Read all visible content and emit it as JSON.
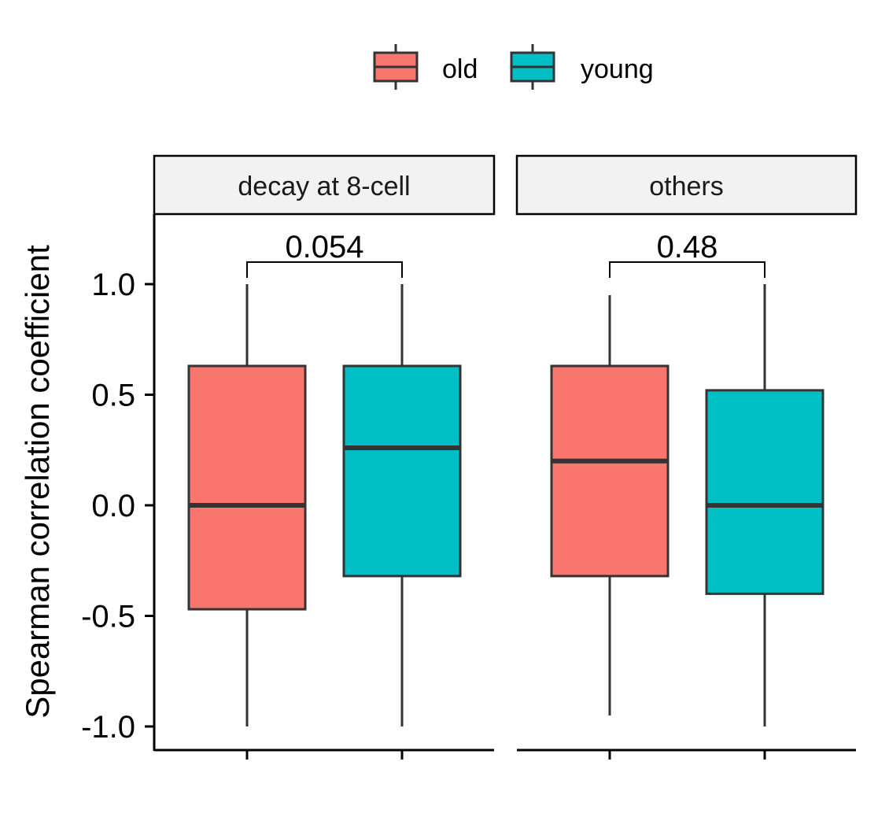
{
  "chart_data": {
    "type": "box",
    "ylabel": "Spearman correlation coefficient",
    "ylim": [
      -1.1,
      1.3
    ],
    "yticks": [
      "-1.0",
      "-0.5",
      "0.0",
      "0.5",
      "1.0"
    ],
    "ytick_values": [
      -1.0,
      -0.5,
      0.0,
      0.5,
      1.0
    ],
    "grid": false,
    "legend": {
      "position": "top",
      "entries": [
        {
          "label": "old",
          "color": "#F8766D"
        },
        {
          "label": "young",
          "color": "#00BFC4"
        }
      ]
    },
    "panels": [
      {
        "strip": "decay at 8-cell",
        "pvalue": "0.054",
        "boxes": [
          {
            "group": "old",
            "min": -1.0,
            "q1": -0.47,
            "median": 0.0,
            "q3": 0.63,
            "max": 1.0
          },
          {
            "group": "young",
            "min": -1.0,
            "q1": -0.32,
            "median": 0.26,
            "q3": 0.63,
            "max": 1.0
          }
        ]
      },
      {
        "strip": "others",
        "pvalue": "0.48",
        "boxes": [
          {
            "group": "old",
            "min": -0.95,
            "q1": -0.32,
            "median": 0.2,
            "q3": 0.63,
            "max": 0.95
          },
          {
            "group": "young",
            "min": -1.0,
            "q1": -0.4,
            "median": 0.0,
            "q3": 0.52,
            "max": 1.0
          }
        ]
      }
    ]
  }
}
